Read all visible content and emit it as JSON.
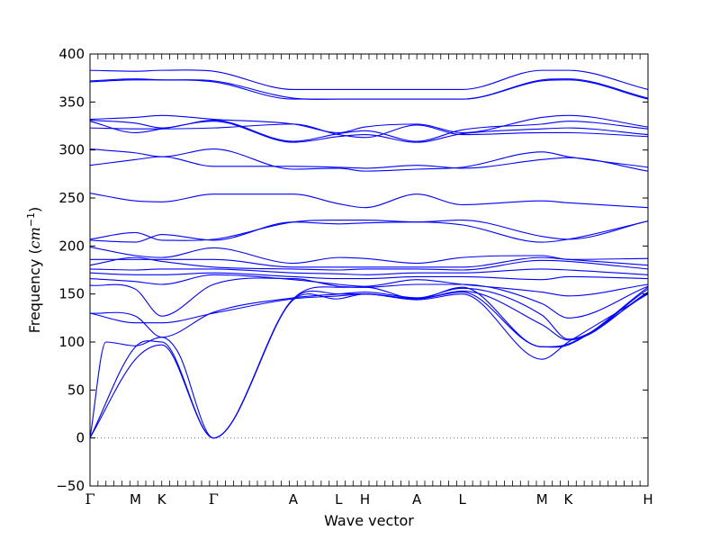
{
  "chart_data": {
    "type": "line",
    "title": "",
    "xlabel": "Wave vector",
    "ylabel_text": "Frequency (",
    "ylabel_unit_main": "cm",
    "ylabel_unit_sup": "−1",
    "ylabel_close": ")",
    "ylim": [
      -50,
      400
    ],
    "yticks": [
      -50,
      0,
      50,
      100,
      150,
      200,
      250,
      300,
      350,
      400
    ],
    "xlim": [
      0,
      7.0
    ],
    "grid": false,
    "legend": "none",
    "zero_line": {
      "y": 0,
      "style": "dotted",
      "color": "#555555"
    },
    "line_color": "#0000ff",
    "high_symmetry_points": [
      {
        "label": "Γ",
        "x": 0.0
      },
      {
        "label": "M",
        "x": 0.57
      },
      {
        "label": "K",
        "x": 0.9
      },
      {
        "label": "Γ",
        "x": 1.55
      },
      {
        "label": "A",
        "x": 2.55
      },
      {
        "label": "L",
        "x": 3.12
      },
      {
        "label": "H",
        "x": 3.45
      },
      {
        "label": "A",
        "x": 4.1
      },
      {
        "label": "L",
        "x": 4.67
      },
      {
        "label": "M",
        "x": 5.67
      },
      {
        "label": "K",
        "x": 6.0
      },
      {
        "label": "H",
        "x": 7.0
      }
    ],
    "series": [
      {
        "x": [
          0,
          0.57,
          0.9,
          1.55,
          2.55,
          3.12,
          3.45,
          4.1,
          4.67,
          5.67,
          6.0,
          7.0
        ],
        "y": [
          383,
          382,
          383,
          382,
          363,
          363,
          363,
          363,
          363,
          383,
          383,
          363
        ]
      },
      {
        "x": [
          0,
          0.57,
          0.9,
          1.55,
          2.55,
          3.12,
          3.45,
          4.1,
          4.67,
          5.67,
          6.0,
          7.0
        ],
        "y": [
          372,
          374,
          373,
          372,
          354,
          353,
          353,
          353,
          353,
          373,
          374,
          354
        ]
      },
      {
        "x": [
          0,
          0.57,
          0.9,
          1.55,
          2.55,
          3.12,
          3.45,
          4.1,
          4.67,
          5.67,
          6.0,
          7.0
        ],
        "y": [
          371,
          373,
          373,
          371,
          353,
          353,
          353,
          353,
          353,
          372,
          373,
          353
        ]
      },
      {
        "x": [
          0,
          0.57,
          0.9,
          1.55,
          2.55,
          3.12,
          3.45,
          4.1,
          4.67,
          5.67,
          6.0,
          7.0
        ],
        "y": [
          332,
          334,
          336,
          332,
          327,
          318,
          324,
          327,
          318,
          334,
          336,
          324
        ]
      },
      {
        "x": [
          0,
          0.57,
          0.9,
          1.55,
          2.55,
          3.12,
          3.45,
          4.1,
          4.67,
          5.67,
          6.0,
          7.0
        ],
        "y": [
          331,
          328,
          323,
          331,
          309,
          317,
          320,
          309,
          321,
          327,
          330,
          322
        ]
      },
      {
        "x": [
          0,
          0.57,
          0.9,
          1.55,
          2.55,
          3.12,
          3.45,
          4.1,
          4.67,
          5.67,
          6.0,
          7.0
        ],
        "y": [
          330,
          318,
          322,
          330,
          308,
          314,
          316,
          308,
          317,
          322,
          323,
          316
        ]
      },
      {
        "x": [
          0,
          0.57,
          0.9,
          1.55,
          2.55,
          3.12,
          3.45,
          4.1,
          4.67,
          5.67,
          6.0,
          7.0
        ],
        "y": [
          323,
          322,
          322,
          323,
          327,
          316,
          313,
          326,
          316,
          318,
          318,
          314
        ]
      },
      {
        "x": [
          0,
          0.57,
          0.9,
          1.55,
          2.55,
          3.12,
          3.45,
          4.1,
          4.67,
          5.67,
          6.0,
          7.0
        ],
        "y": [
          301,
          297,
          293,
          301,
          280,
          281,
          278,
          280,
          282,
          298,
          293,
          282
        ]
      },
      {
        "x": [
          0,
          0.57,
          0.9,
          1.55,
          2.55,
          3.12,
          3.45,
          4.1,
          4.67,
          5.67,
          6.0,
          7.0
        ],
        "y": [
          284,
          290,
          293,
          283,
          283,
          282,
          281,
          284,
          281,
          290,
          292,
          278
        ]
      },
      {
        "x": [
          0,
          0.57,
          0.9,
          1.55,
          2.55,
          3.12,
          3.45,
          4.1,
          4.67,
          5.67,
          6.0,
          7.0
        ],
        "y": [
          255,
          247,
          246,
          254,
          254,
          244,
          240,
          254,
          243,
          247,
          245,
          240
        ]
      },
      {
        "x": [
          0,
          0.57,
          0.9,
          1.55,
          2.55,
          3.12,
          3.45,
          4.1,
          4.67,
          5.67,
          6.0,
          7.0
        ],
        "y": [
          207,
          214,
          206,
          207,
          225,
          227,
          227,
          225,
          227,
          210,
          207,
          226
        ]
      },
      {
        "x": [
          0,
          0.57,
          0.9,
          1.55,
          2.55,
          3.12,
          3.45,
          4.1,
          4.67,
          5.67,
          6.0,
          7.0
        ],
        "y": [
          206,
          204,
          212,
          206,
          225,
          223,
          224,
          225,
          222,
          204,
          207,
          226
        ]
      },
      {
        "x": [
          0,
          0.57,
          0.9,
          1.55,
          2.55,
          3.12,
          3.45,
          4.1,
          4.67,
          5.67,
          6.0,
          7.0
        ],
        "y": [
          199,
          190,
          188,
          198,
          182,
          188,
          187,
          182,
          188,
          190,
          186,
          187
        ]
      },
      {
        "x": [
          0,
          0.57,
          0.9,
          1.55,
          2.55,
          3.12,
          3.45,
          4.1,
          4.67,
          5.67,
          6.0,
          7.0
        ],
        "y": [
          186,
          186,
          186,
          186,
          178,
          178,
          178,
          178,
          178,
          188,
          186,
          180
        ]
      },
      {
        "x": [
          0,
          0.57,
          0.9,
          1.55,
          2.55,
          3.12,
          3.45,
          4.1,
          4.67,
          5.67,
          6.0,
          7.0
        ],
        "y": [
          180,
          188,
          184,
          178,
          176,
          175,
          176,
          176,
          175,
          185,
          184,
          176
        ]
      },
      {
        "x": [
          0,
          0.57,
          0.9,
          1.55,
          2.55,
          3.12,
          3.45,
          4.1,
          4.67,
          5.67,
          6.0,
          7.0
        ],
        "y": [
          176,
          175,
          176,
          176,
          172,
          171,
          170,
          172,
          172,
          176,
          175,
          170
        ]
      },
      {
        "x": [
          0,
          0.57,
          0.9,
          1.55,
          2.55,
          3.12,
          3.45,
          4.1,
          4.67,
          5.67,
          6.0,
          7.0
        ],
        "y": [
          172,
          170,
          170,
          172,
          168,
          166,
          166,
          168,
          168,
          165,
          168,
          166
        ]
      },
      {
        "x": [
          0,
          0.57,
          0.9,
          1.55,
          2.55,
          3.12,
          3.45,
          4.1,
          4.67,
          5.67,
          6.0,
          7.0
        ],
        "y": [
          166,
          163,
          160,
          170,
          165,
          160,
          158,
          165,
          160,
          152,
          148,
          160
        ]
      },
      {
        "x": [
          0,
          0.57,
          0.9,
          1.55,
          2.55,
          3.12,
          3.45,
          4.1,
          4.67,
          5.67,
          6.0,
          7.0
        ],
        "y": [
          159,
          155,
          127,
          160,
          166,
          158,
          157,
          160,
          160,
          140,
          125,
          158
        ]
      },
      {
        "x": [
          0,
          0.57,
          0.9,
          1.55,
          2.55,
          3.12,
          3.45,
          4.1,
          4.67,
          5.67,
          6.0,
          7.0
        ],
        "y": [
          130,
          127,
          105,
          131,
          146,
          150,
          152,
          146,
          156,
          128,
          103,
          155
        ]
      },
      {
        "x": [
          0,
          0.57,
          0.9,
          1.55,
          2.55,
          3.12,
          3.45,
          4.1,
          4.67,
          5.67,
          6.0,
          7.0
        ],
        "y": [
          130,
          120,
          120,
          130,
          145,
          148,
          150,
          145,
          153,
          118,
          102,
          152
        ]
      },
      {
        "x": [
          0,
          0.2,
          0.57,
          0.9,
          1.1,
          1.55,
          2.55,
          3.12,
          3.45,
          4.1,
          4.67,
          5.67,
          6.0,
          7.0
        ],
        "y": [
          0,
          100,
          96,
          105,
          90,
          0,
          145,
          157,
          157,
          145,
          157,
          95,
          97,
          157
        ]
      },
      {
        "x": [
          0,
          0.57,
          0.9,
          1.55,
          2.55,
          3.12,
          3.45,
          4.1,
          4.67,
          5.67,
          6.0,
          7.0
        ],
        "y": [
          0,
          95,
          100,
          0,
          145,
          150,
          150,
          145,
          152,
          95,
          98,
          151
        ]
      },
      {
        "x": [
          0,
          0.57,
          0.9,
          1.55,
          2.55,
          3.12,
          3.45,
          4.1,
          4.67,
          5.67,
          6.0,
          7.0
        ],
        "y": [
          0,
          82,
          97,
          0,
          144,
          145,
          150,
          144,
          150,
          82,
          100,
          150
        ]
      }
    ]
  }
}
